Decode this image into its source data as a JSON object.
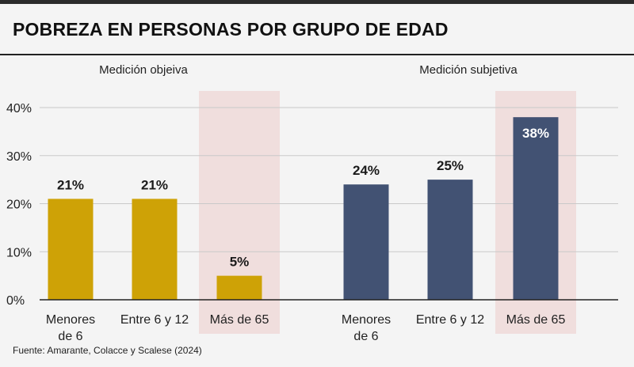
{
  "title": "POBREZA EN PERSONAS POR GRUPO DE EDAD",
  "source": "Fuente: Amarante, Colacce y Scalese (2024)",
  "colors": {
    "objective": "#cea206",
    "subjective": "#425273",
    "highlight_band": "#f0dedd",
    "grid": "#c9c9c9",
    "axis": "#222222"
  },
  "chart_data": {
    "type": "bar",
    "title": "POBREZA EN PERSONAS POR GRUPO DE EDAD",
    "ylabel": "",
    "xlabel": "",
    "ylim": [
      0,
      40
    ],
    "y_ticks": [
      0,
      10,
      20,
      30,
      40
    ],
    "y_tick_labels": [
      "0%",
      "10%",
      "20%",
      "30%",
      "40%"
    ],
    "grid": true,
    "groups": [
      {
        "name": "Medición objeiva",
        "color": "objective",
        "categories": [
          "Menores de 6",
          "Entre 6 y 12",
          "Más de 65"
        ],
        "category_lines": [
          [
            "Menores",
            "de 6"
          ],
          [
            "Entre 6 y 12"
          ],
          [
            "Más de 65"
          ]
        ],
        "values": [
          21,
          21,
          5
        ],
        "value_labels": [
          "21%",
          "21%",
          "5%"
        ],
        "highlighted": "Más de 65"
      },
      {
        "name": "Medición subjetiva",
        "color": "subjective",
        "categories": [
          "Menores de 6",
          "Entre 6 y 12",
          "Más de 65"
        ],
        "category_lines": [
          [
            "Menores",
            "de 6"
          ],
          [
            "Entre 6 y 12"
          ],
          [
            "Más de 65"
          ]
        ],
        "values": [
          24,
          25,
          38
        ],
        "value_labels": [
          "24%",
          "25%",
          "38%"
        ],
        "highlighted": "Más de 65"
      }
    ]
  }
}
